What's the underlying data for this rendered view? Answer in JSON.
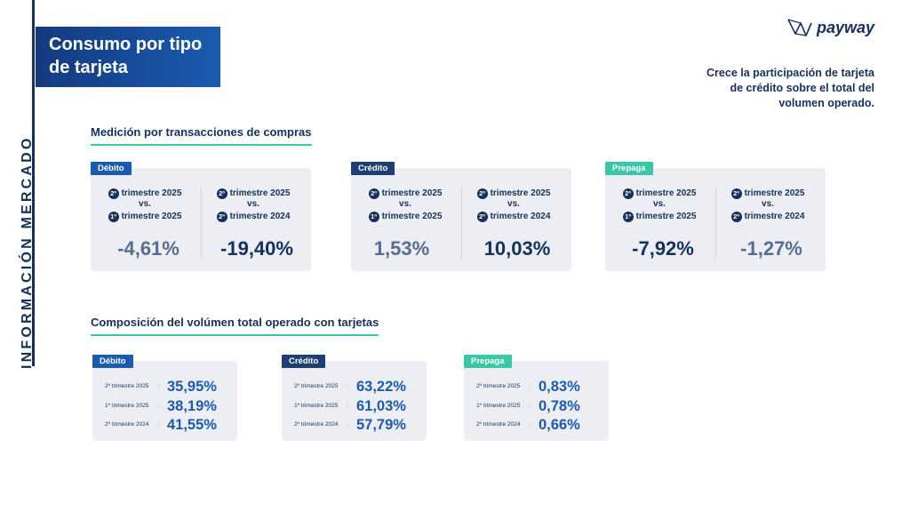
{
  "sidebar": {
    "vertical_title": "INFORMACIÓN MERCADO"
  },
  "title": {
    "line1": "Consumo por tipo",
    "line2": "de tarjeta"
  },
  "logo": {
    "text": "payway"
  },
  "headline": {
    "line1": "Crece la participación de tarjeta",
    "line2": "de crédito sobre el total del",
    "line3": "volumen operado."
  },
  "section1": {
    "title": "Medición por transacciones de compras",
    "cards": [
      {
        "tag": "Débito",
        "tag_color": "#1a5bb0",
        "columns": [
          {
            "n1": "2º",
            "l1": "trimestre 2025",
            "vs": "vs.",
            "n2": "1º",
            "l2": "trimestre 2025",
            "value": "-4,61%"
          },
          {
            "n1": "2º",
            "l1": "trimestre 2025",
            "vs": "vs.",
            "n2": "2º",
            "l2": "trimestre 2024",
            "value": "-19,40%"
          }
        ]
      },
      {
        "tag": "Crédito",
        "tag_color": "#1d3f73",
        "columns": [
          {
            "n1": "2º",
            "l1": "trimestre 2025",
            "vs": "vs.",
            "n2": "1º",
            "l2": "trimestre 2025",
            "value": "1,53%"
          },
          {
            "n1": "2º",
            "l1": "trimestre 2025",
            "vs": "vs.",
            "n2": "2º",
            "l2": "trimestre 2024",
            "value": "10,03%"
          }
        ]
      },
      {
        "tag": "Prepaga",
        "tag_color": "#39c7a5",
        "columns": [
          {
            "n1": "2º",
            "l1": "trimestre 2025",
            "vs": "vs.",
            "n2": "1º",
            "l2": "trimestre 2025",
            "value": "-7,92%"
          },
          {
            "n1": "2º",
            "l1": "trimestre 2025",
            "vs": "vs.",
            "n2": "2º",
            "l2": "trimestre 2024",
            "value": "-1,27%"
          }
        ]
      }
    ]
  },
  "section2": {
    "title": "Composición del volúmen total operado con tarjetas",
    "cards": [
      {
        "tag": "Débito",
        "rows": [
          {
            "label": "2º trimestre 2025",
            "value": "35,95%"
          },
          {
            "label": "1º trimestre 2025",
            "value": "38,19%"
          },
          {
            "label": "2º trimestre 2024",
            "value": "41,55%"
          }
        ]
      },
      {
        "tag": "Crédito",
        "rows": [
          {
            "label": "2º trimestre 2025",
            "value": "63,22%"
          },
          {
            "label": "1º trimestre 2025",
            "value": "61,03%"
          },
          {
            "label": "2º trimestre 2024",
            "value": "57,79%"
          }
        ]
      },
      {
        "tag": "Prepaga",
        "rows": [
          {
            "label": "2º trimestre 2025",
            "value": "0,83%"
          },
          {
            "label": "1º trimestre 2025",
            "value": "0,78%"
          },
          {
            "label": "2º trimestre 2024",
            "value": "0,66%"
          }
        ]
      }
    ]
  }
}
